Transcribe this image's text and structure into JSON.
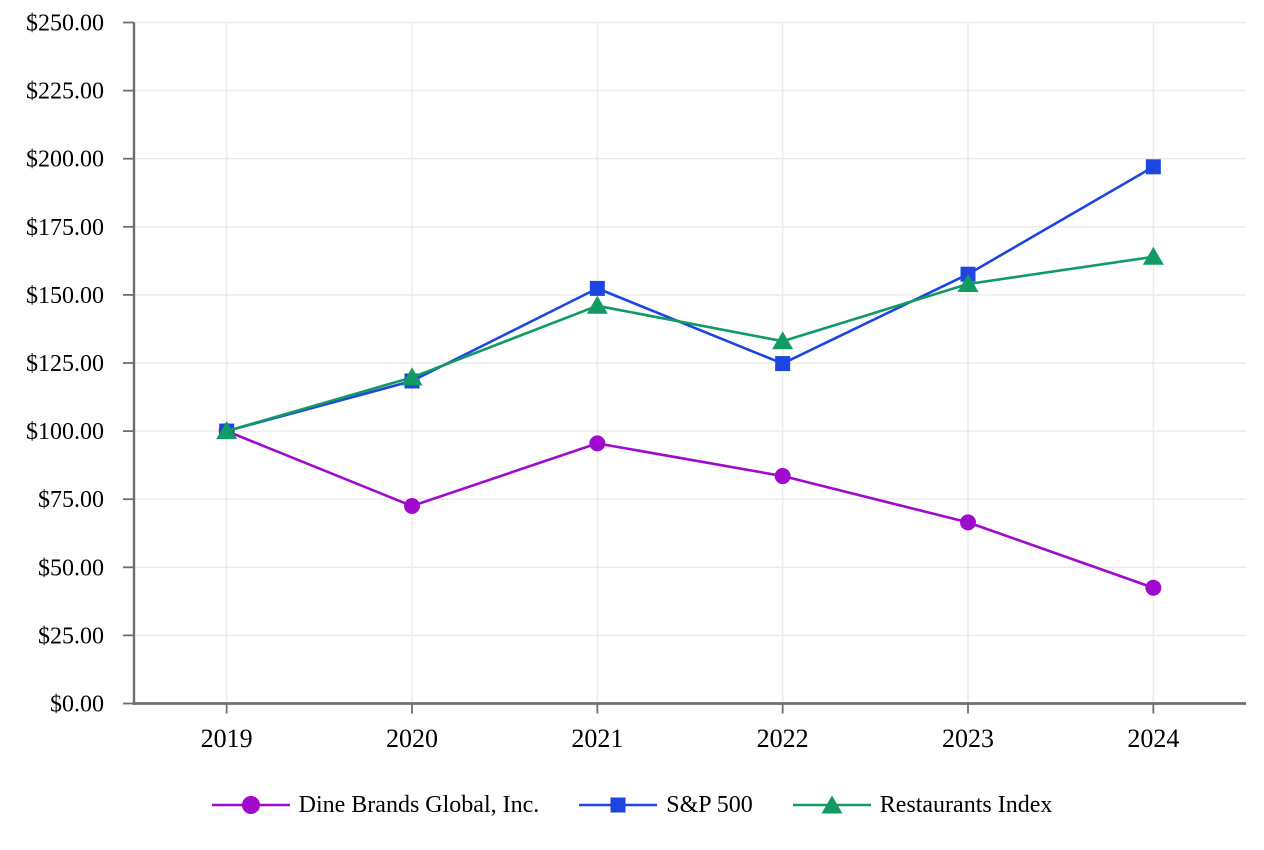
{
  "chart_data": {
    "type": "line",
    "title": "",
    "xlabel": "",
    "ylabel": "",
    "categories": [
      "2019",
      "2020",
      "2021",
      "2022",
      "2023",
      "2024"
    ],
    "series": [
      {
        "name": "Dine Brands Global, Inc.",
        "marker": "circle",
        "color": "#A00ACD",
        "values": [
          100.0,
          72.5,
          95.5,
          83.5,
          66.5,
          42.5
        ]
      },
      {
        "name": "S&P 500",
        "marker": "square",
        "color": "#1D45E2",
        "values": [
          100.0,
          118.4,
          152.39,
          124.79,
          157.59,
          197.02
        ]
      },
      {
        "name": "Restaurants Index",
        "marker": "triangle",
        "color": "#119A63",
        "values": [
          100.0,
          119.7,
          146.0,
          133.0,
          154.0,
          164.0
        ]
      }
    ],
    "ylim": [
      0,
      250
    ],
    "y_tick_step": 25,
    "y_tick_labels": [
      "$0.00",
      "$25.00",
      "$50.00",
      "$75.00",
      "$100.00",
      "$125.00",
      "$150.00",
      "$175.00",
      "$200.00",
      "$225.00",
      "$250.00"
    ],
    "grid": true,
    "legend_position": "bottom"
  },
  "colors": {
    "background": "#FFFFFF",
    "grid": "#EAEAEA",
    "axis": "#6E6E6E",
    "text": "#000000"
  }
}
